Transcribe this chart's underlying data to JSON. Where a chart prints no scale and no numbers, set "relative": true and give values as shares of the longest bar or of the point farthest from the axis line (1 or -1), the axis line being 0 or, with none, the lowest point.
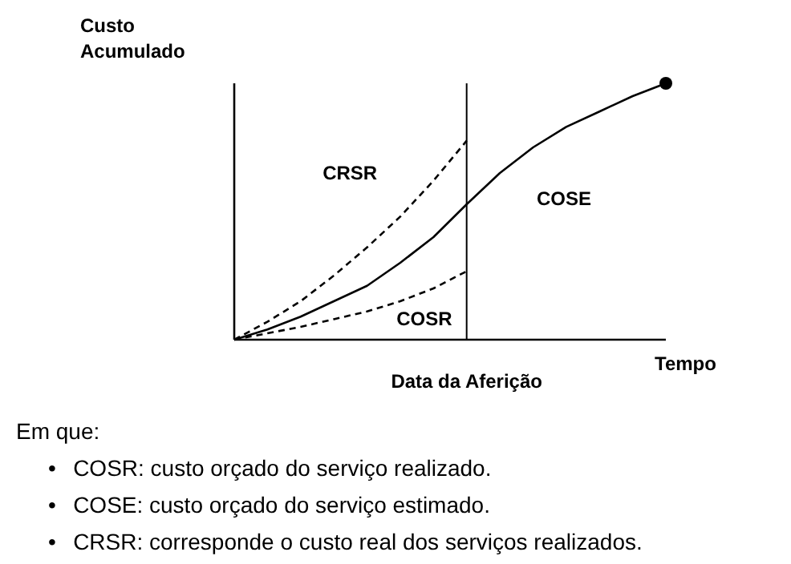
{
  "chart_data": {
    "type": "line",
    "relative": true,
    "xlabel": "Tempo",
    "ylabel": "Custo Acumulado",
    "marker": "none",
    "categories": [
      null,
      null,
      null,
      null,
      null,
      null,
      null,
      null,
      null,
      null,
      null,
      null,
      null,
      null
    ],
    "series": [
      {
        "name": "COSE",
        "color": "#000000",
        "line_style": "solid",
        "values": [
          0,
          0.04,
          0.09,
          0.15,
          0.21,
          0.3,
          0.4,
          0.528,
          0.65,
          0.75,
          0.83,
          0.89,
          0.95,
          1
        ]
      },
      {
        "name": "CRSR",
        "color": "#000000",
        "line_style": "dashed",
        "values": [
          0,
          0.07,
          0.15,
          0.25,
          0.36,
          0.48,
          0.62,
          0.776,
          null,
          null,
          null,
          null,
          null,
          null
        ]
      },
      {
        "name": "COSR",
        "color": "#000000",
        "line_style": "dashed",
        "values": [
          0,
          0.025,
          0.05,
          0.08,
          0.11,
          0.15,
          0.2,
          0.267,
          null,
          null,
          null,
          null,
          null,
          null
        ]
      }
    ],
    "annotations": [
      "Data da Aferição",
      "Em que:",
      "•\tCOSR: custo orçado do serviço realizado.",
      "•\tCOSE: custo orçado do serviço estimado.",
      "•\tCRSR: corresponde o custo real dos serviços realizados."
    ]
  }
}
